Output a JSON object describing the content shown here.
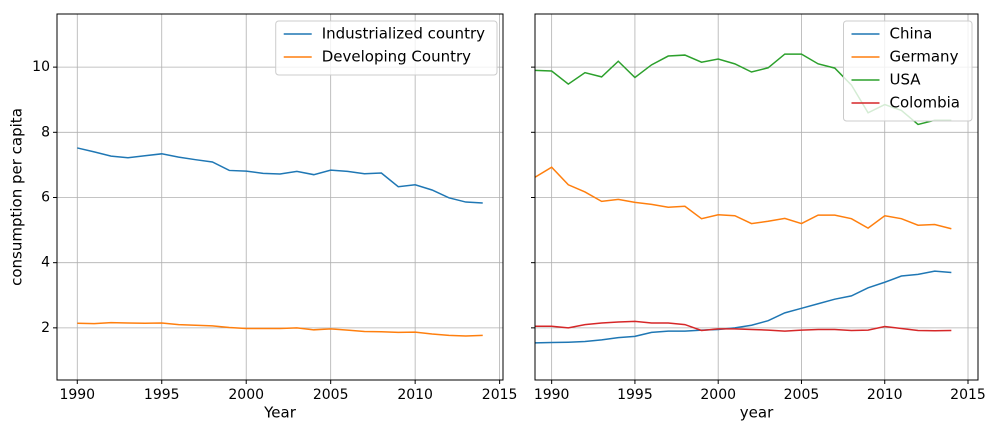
{
  "chart_data": [
    {
      "type": "line",
      "xlabel": "Year",
      "ylabel": "consumption per capita",
      "x": [
        1990,
        1991,
        1992,
        1993,
        1994,
        1995,
        1996,
        1997,
        1998,
        1999,
        2000,
        2001,
        2002,
        2003,
        2004,
        2005,
        2006,
        2007,
        2008,
        2009,
        2010,
        2011,
        2012,
        2013,
        2014
      ],
      "series": [
        {
          "name": "Industrialized country",
          "color": "#1f77b4",
          "values": [
            7.52,
            7.4,
            7.27,
            7.22,
            7.28,
            7.34,
            7.24,
            7.16,
            7.09,
            6.83,
            6.81,
            6.74,
            6.72,
            6.8,
            6.7,
            6.84,
            6.8,
            6.73,
            6.75,
            6.33,
            6.39,
            6.23,
            5.99,
            5.86,
            5.83
          ]
        },
        {
          "name": "Developing Country",
          "color": "#ff7f0e",
          "values": [
            2.14,
            2.13,
            2.16,
            2.15,
            2.14,
            2.15,
            2.1,
            2.08,
            2.06,
            2.01,
            1.98,
            1.98,
            1.98,
            2.0,
            1.94,
            1.97,
            1.93,
            1.89,
            1.88,
            1.86,
            1.87,
            1.81,
            1.77,
            1.75,
            1.77
          ]
        }
      ],
      "xlim": [
        1988.8,
        2015.2
      ],
      "xticks": [
        1990,
        1995,
        2000,
        2005,
        2010,
        2015
      ],
      "ylim": [
        0.4,
        11.63
      ],
      "yticks": [
        2,
        4,
        6,
        8,
        10
      ],
      "grid": true,
      "legend": "upper right"
    },
    {
      "type": "line",
      "xlabel": "year",
      "x": [
        1989,
        1990,
        1991,
        1992,
        1993,
        1994,
        1995,
        1996,
        1997,
        1998,
        1999,
        2000,
        2001,
        2002,
        2003,
        2004,
        2005,
        2006,
        2007,
        2008,
        2009,
        2010,
        2011,
        2012,
        2013,
        2014
      ],
      "series": [
        {
          "name": "China",
          "color": "#1f77b4",
          "values": [
            1.54,
            1.55,
            1.56,
            1.58,
            1.63,
            1.7,
            1.74,
            1.86,
            1.9,
            1.9,
            1.93,
            1.95,
            2.0,
            2.08,
            2.22,
            2.46,
            2.6,
            2.74,
            2.88,
            2.98,
            3.23,
            3.4,
            3.59,
            3.64,
            3.74,
            3.7
          ]
        },
        {
          "name": "Germany",
          "color": "#ff7f0e",
          "values": [
            6.62,
            6.93,
            6.39,
            6.17,
            5.88,
            5.94,
            5.85,
            5.79,
            5.7,
            5.73,
            5.35,
            5.47,
            5.44,
            5.2,
            5.27,
            5.36,
            5.2,
            5.46,
            5.46,
            5.35,
            5.06,
            5.44,
            5.35,
            5.15,
            5.17,
            5.04
          ]
        },
        {
          "name": "USA",
          "color": "#2ca02c",
          "values": [
            9.9,
            9.88,
            9.48,
            9.83,
            9.7,
            10.18,
            9.68,
            10.07,
            10.34,
            10.37,
            10.15,
            10.25,
            10.1,
            9.85,
            9.98,
            10.4,
            10.4,
            10.1,
            9.97,
            9.45,
            8.6,
            8.85,
            8.67,
            8.24,
            8.37,
            8.37
          ]
        },
        {
          "name": "Colombia",
          "color": "#d62728",
          "values": [
            2.05,
            2.05,
            2.0,
            2.1,
            2.15,
            2.18,
            2.2,
            2.15,
            2.15,
            2.1,
            1.92,
            1.97,
            1.97,
            1.95,
            1.93,
            1.9,
            1.93,
            1.95,
            1.95,
            1.92,
            1.93,
            2.04,
            1.98,
            1.92,
            1.91,
            1.92
          ]
        }
      ],
      "xlim": [
        1989,
        2015.6
      ],
      "xticks": [
        1990,
        1995,
        2000,
        2005,
        2010,
        2015
      ],
      "ylim": [
        0.4,
        11.63
      ],
      "yticks": [
        2,
        4,
        6,
        8,
        10
      ],
      "ytick_labels": false,
      "grid": true,
      "legend": "upper right"
    }
  ]
}
